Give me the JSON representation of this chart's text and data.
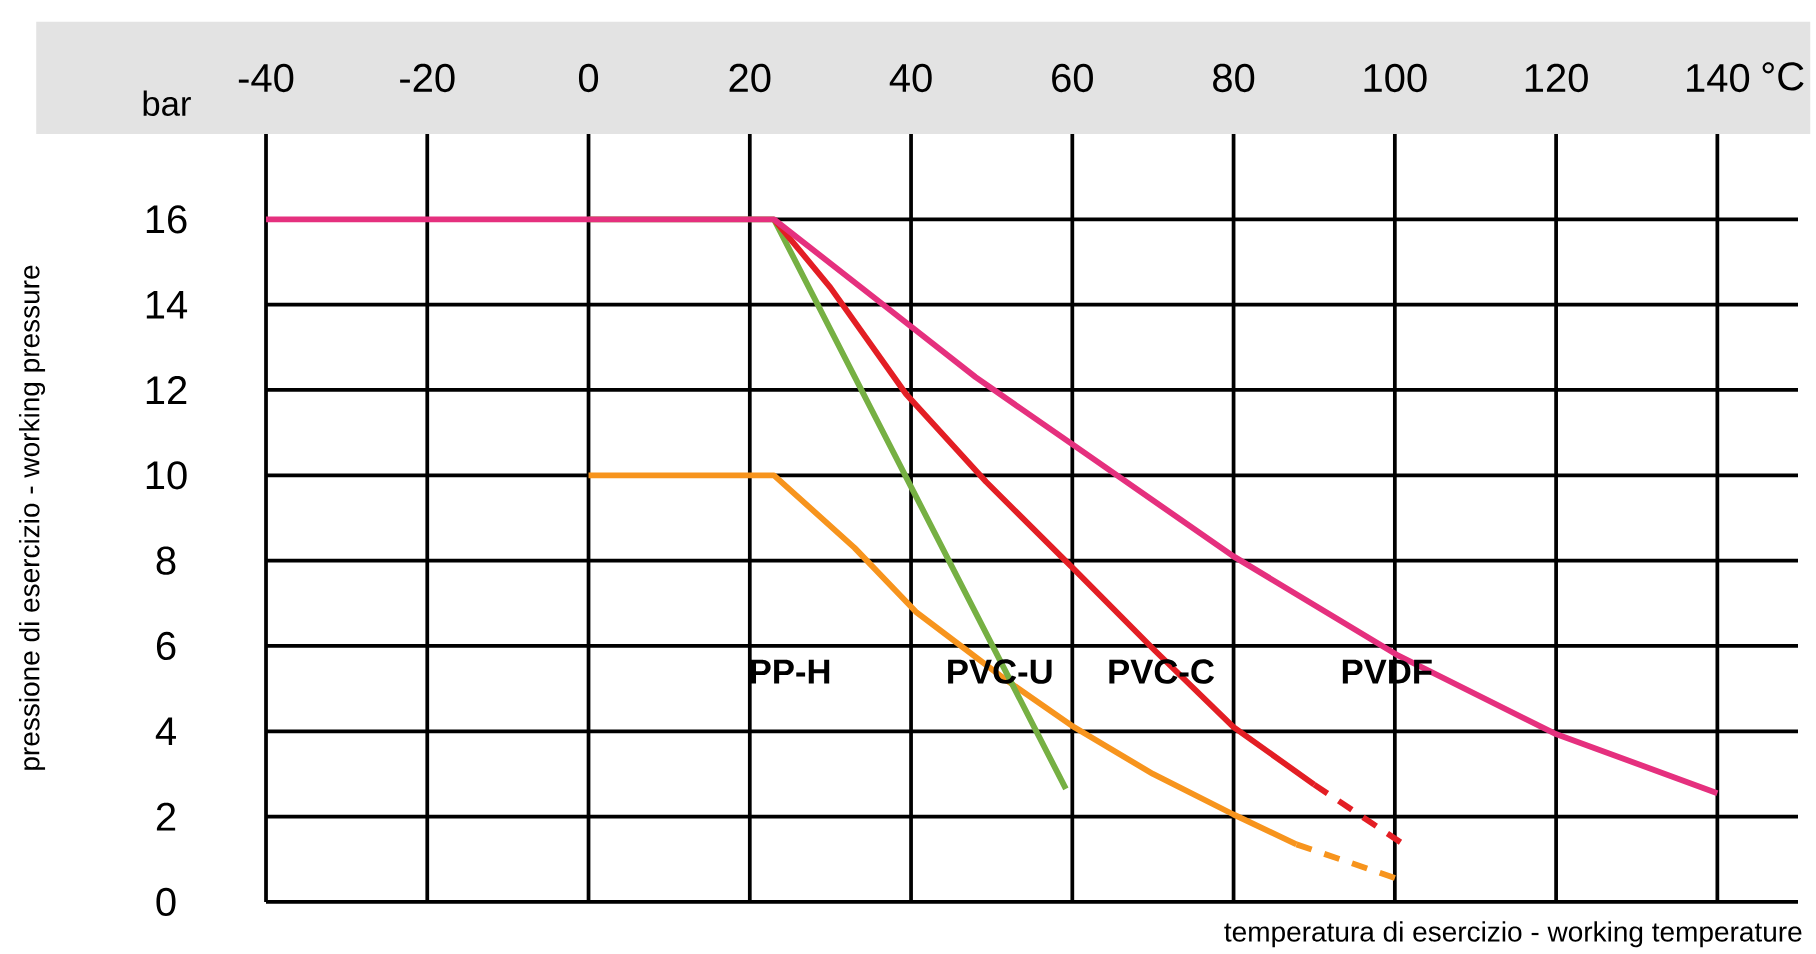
{
  "chart_data": {
    "type": "line",
    "xlabel": "temperatura di esercizio - working temperature",
    "ylabel": "pressione di esercizio - working pressure",
    "annotations": [
      "bar",
      "°C"
    ],
    "xlim": [
      -40,
      150
    ],
    "ylim": [
      0,
      18
    ],
    "xticks": [
      -40,
      -20,
      0,
      20,
      40,
      60,
      80,
      100,
      120,
      140
    ],
    "yticks": [
      0,
      2,
      4,
      6,
      8,
      10,
      12,
      14,
      16
    ],
    "grid": true,
    "marker": "none",
    "line_style": "solid",
    "series": [
      {
        "name": "PP-H",
        "color": "#f7941d",
        "x": [
          0,
          23,
          33,
          40.6,
          51.8,
          60.2,
          70,
          80,
          87.8
        ],
        "values": [
          10,
          10,
          8.3,
          6.8,
          5.2,
          4.1,
          3,
          2.05,
          1.35
        ]
      },
      {
        "name": "PVC-U",
        "color": "#76b043",
        "x": [
          0,
          23,
          59.2
        ],
        "values": [
          16,
          16,
          2.65
        ]
      },
      {
        "name": "PVC-C",
        "color": "#e31e24",
        "x": [
          23,
          30,
          39.4,
          49.3,
          60.2,
          70.2,
          80,
          90
        ],
        "values": [
          16,
          14.4,
          11.9,
          9.85,
          7.8,
          5.9,
          4.1,
          2.75
        ]
      },
      {
        "name": "PVDF",
        "color": "#e5307e",
        "x": [
          -40,
          23,
          36.2,
          48,
          60.2,
          80,
          100.2,
          119.8,
          140
        ],
        "values": [
          16,
          16,
          14.05,
          12.3,
          10.7,
          8.1,
          5.8,
          3.95,
          2.55
        ]
      },
      {
        "color": "#e31e24",
        "line_style": "dashed",
        "x": [
          90,
          100.7
        ],
        "values": [
          2.75,
          1.4
        ]
      },
      {
        "color": "#f7941d",
        "line_style": "dashed",
        "x": [
          87.8,
          100.2
        ],
        "values": [
          1.35,
          0.55
        ]
      }
    ]
  }
}
